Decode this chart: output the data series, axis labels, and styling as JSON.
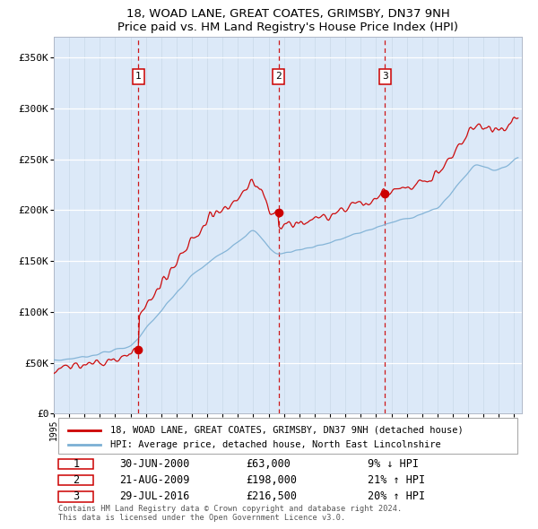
{
  "title1": "18, WOAD LANE, GREAT COATES, GRIMSBY, DN37 9NH",
  "title2": "Price paid vs. HM Land Registry's House Price Index (HPI)",
  "ylabel_ticks": [
    "£0",
    "£50K",
    "£100K",
    "£150K",
    "£200K",
    "£250K",
    "£300K",
    "£350K"
  ],
  "ytick_vals": [
    0,
    50000,
    100000,
    150000,
    200000,
    250000,
    300000,
    350000
  ],
  "ylim": [
    0,
    370000
  ],
  "xlim_start": 1995.0,
  "xlim_end": 2025.5,
  "plot_bg": "#dce9f8",
  "red_line_color": "#cc0000",
  "blue_line_color": "#7bafd4",
  "purchases": [
    {
      "label": "1",
      "date_num": 2000.5,
      "price": 63000,
      "text": "30-JUN-2000",
      "price_str": "£63,000",
      "hpi_str": "9% ↓ HPI"
    },
    {
      "label": "2",
      "date_num": 2009.64,
      "price": 198000,
      "text": "21-AUG-2009",
      "price_str": "£198,000",
      "hpi_str": "21% ↑ HPI"
    },
    {
      "label": "3",
      "date_num": 2016.58,
      "price": 216500,
      "text": "29-JUL-2016",
      "price_str": "£216,500",
      "hpi_str": "20% ↑ HPI"
    }
  ],
  "legend_line1": "18, WOAD LANE, GREAT COATES, GRIMSBY, DN37 9NH (detached house)",
  "legend_line2": "HPI: Average price, detached house, North East Lincolnshire",
  "footnote1": "Contains HM Land Registry data © Crown copyright and database right 2024.",
  "footnote2": "This data is licensed under the Open Government Licence v3.0."
}
